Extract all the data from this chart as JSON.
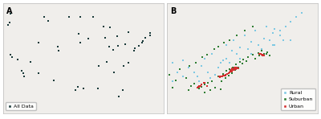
{
  "fig_width": 4.0,
  "fig_height": 1.48,
  "dpi": 100,
  "background_color": "#ffffff",
  "panel_bg": "#f0eeeb",
  "map_face_color": "#f0eeeb",
  "map_edge_color": "#888888",
  "map_edge_width": 0.3,
  "all_data_color": "#1a3a3a",
  "rural_color": "#7ec8e3",
  "suburban_color": "#2e7d32",
  "urban_color": "#d32f2f",
  "marker_size_a": 3,
  "marker_size_b": 4,
  "label_a": "A",
  "label_b": "B",
  "legend_a_label": "All Data",
  "legend_rural": "Rural",
  "legend_suburban": "Suburban",
  "legend_urban": "Urban",
  "us_xlim": [
    -125,
    -66
  ],
  "us_ylim": [
    24,
    50
  ],
  "ne_xlim": [
    -80,
    -66
  ],
  "ne_ylim": [
    36,
    48
  ],
  "all_points": [
    [
      -122.4,
      47.6
    ],
    [
      -122.3,
      37.8
    ],
    [
      -118.2,
      34.1
    ],
    [
      -117.2,
      32.7
    ],
    [
      -119.8,
      36.7
    ],
    [
      -121.9,
      37.3
    ],
    [
      -117.7,
      33.4
    ],
    [
      -112.1,
      33.4
    ],
    [
      -104.9,
      39.7
    ],
    [
      -104.7,
      38.8
    ],
    [
      -96.7,
      40.8
    ],
    [
      -97.3,
      42.8
    ],
    [
      -93.6,
      41.6
    ],
    [
      -87.6,
      41.9
    ],
    [
      -86.2,
      39.8
    ],
    [
      -83.0,
      42.3
    ],
    [
      -84.5,
      39.1
    ],
    [
      -82.9,
      40.0
    ],
    [
      -80.2,
      40.4
    ],
    [
      -79.0,
      43.2
    ],
    [
      -75.2,
      39.9
    ],
    [
      -74.0,
      40.7
    ],
    [
      -73.8,
      41.1
    ],
    [
      -72.7,
      41.8
    ],
    [
      -71.1,
      42.4
    ],
    [
      -70.9,
      43.0
    ],
    [
      -77.0,
      38.9
    ],
    [
      -76.6,
      39.3
    ],
    [
      -78.9,
      36.0
    ],
    [
      -80.8,
      35.2
    ],
    [
      -84.4,
      33.7
    ],
    [
      -86.8,
      36.2
    ],
    [
      -90.1,
      29.9
    ],
    [
      -90.0,
      35.1
    ],
    [
      -95.4,
      29.8
    ],
    [
      -97.7,
      30.3
    ],
    [
      -106.5,
      31.8
    ],
    [
      -98.5,
      29.4
    ],
    [
      -111.9,
      40.8
    ],
    [
      -115.1,
      36.2
    ],
    [
      -123.3,
      44.9
    ],
    [
      -122.7,
      45.5
    ],
    [
      -110.0,
      46.9
    ],
    [
      -108.5,
      45.8
    ],
    [
      -100.8,
      46.9
    ],
    [
      -96.8,
      46.9
    ],
    [
      -92.1,
      46.8
    ],
    [
      -88.0,
      44.5
    ],
    [
      -85.7,
      44.3
    ],
    [
      -81.0,
      29.5
    ],
    [
      -82.5,
      27.9
    ]
  ],
  "rural_points": [
    [
      -77.5,
      40.5
    ],
    [
      -76.8,
      41.2
    ],
    [
      -75.0,
      41.5
    ],
    [
      -74.5,
      42.0
    ],
    [
      -73.5,
      42.5
    ],
    [
      -72.5,
      43.0
    ],
    [
      -71.5,
      43.5
    ],
    [
      -70.5,
      44.0
    ],
    [
      -70.0,
      43.5
    ],
    [
      -69.5,
      44.5
    ],
    [
      -68.5,
      44.0
    ],
    [
      -77.0,
      39.5
    ],
    [
      -76.0,
      39.8
    ],
    [
      -75.5,
      40.2
    ],
    [
      -74.8,
      41.8
    ],
    [
      -74.0,
      42.8
    ],
    [
      -73.2,
      43.2
    ],
    [
      -72.2,
      43.8
    ],
    [
      -71.0,
      44.2
    ],
    [
      -70.2,
      44.8
    ],
    [
      -78.5,
      40.0
    ],
    [
      -79.0,
      40.5
    ],
    [
      -79.5,
      39.5
    ],
    [
      -78.0,
      41.0
    ],
    [
      -76.5,
      42.0
    ],
    [
      -75.8,
      42.5
    ],
    [
      -74.5,
      43.5
    ],
    [
      -73.8,
      44.0
    ],
    [
      -72.8,
      44.5
    ],
    [
      -71.8,
      45.0
    ],
    [
      -70.8,
      45.5
    ],
    [
      -67.5,
      47.0
    ],
    [
      -68.0,
      46.5
    ],
    [
      -68.5,
      46.0
    ],
    [
      -69.0,
      45.5
    ],
    [
      -69.5,
      45.0
    ],
    [
      -70.0,
      45.2
    ],
    [
      -79.5,
      41.5
    ],
    [
      -78.5,
      41.8
    ],
    [
      -77.2,
      40.0
    ],
    [
      -76.2,
      40.5
    ],
    [
      -75.2,
      41.0
    ],
    [
      -74.2,
      41.5
    ],
    [
      -73.2,
      42.0
    ],
    [
      -72.2,
      42.5
    ],
    [
      -71.2,
      43.0
    ],
    [
      -70.2,
      43.5
    ],
    [
      -69.2,
      44.0
    ]
  ],
  "suburban_points": [
    [
      -77.2,
      38.8
    ],
    [
      -77.0,
      38.7
    ],
    [
      -76.8,
      38.9
    ],
    [
      -76.5,
      39.1
    ],
    [
      -76.2,
      39.3
    ],
    [
      -75.8,
      39.5
    ],
    [
      -75.2,
      40.0
    ],
    [
      -74.8,
      40.3
    ],
    [
      -74.5,
      40.6
    ],
    [
      -74.2,
      40.8
    ],
    [
      -73.9,
      41.0
    ],
    [
      -73.6,
      41.3
    ],
    [
      -73.2,
      41.6
    ],
    [
      -72.9,
      41.9
    ],
    [
      -72.5,
      42.1
    ],
    [
      -72.0,
      42.4
    ],
    [
      -71.5,
      42.6
    ],
    [
      -71.2,
      42.8
    ],
    [
      -70.8,
      42.5
    ],
    [
      -70.5,
      42.3
    ],
    [
      -77.5,
      39.2
    ],
    [
      -77.8,
      39.0
    ],
    [
      -76.0,
      38.5
    ],
    [
      -75.5,
      38.8
    ],
    [
      -74.9,
      39.5
    ],
    [
      -74.6,
      39.8
    ],
    [
      -74.3,
      40.1
    ],
    [
      -74.0,
      40.4
    ],
    [
      -73.7,
      40.7
    ],
    [
      -73.4,
      41.0
    ],
    [
      -73.0,
      41.4
    ],
    [
      -72.6,
      41.7
    ],
    [
      -71.8,
      42.0
    ],
    [
      -71.4,
      42.3
    ],
    [
      -71.0,
      42.5
    ],
    [
      -70.7,
      42.7
    ],
    [
      -78.2,
      39.8
    ],
    [
      -79.2,
      39.6
    ],
    [
      -79.8,
      40.2
    ],
    [
      -78.8,
      40.8
    ],
    [
      -77.9,
      41.2
    ],
    [
      -77.3,
      41.5
    ],
    [
      -76.7,
      42.1
    ],
    [
      -76.3,
      42.4
    ],
    [
      -75.6,
      43.0
    ],
    [
      -75.2,
      43.3
    ],
    [
      -74.7,
      43.7
    ],
    [
      -74.2,
      44.0
    ],
    [
      -73.5,
      44.5
    ],
    [
      -72.8,
      45.0
    ],
    [
      -72.0,
      45.5
    ],
    [
      -78.0,
      38.5
    ],
    [
      -79.5,
      38.8
    ],
    [
      -76.5,
      38.3
    ],
    [
      -75.0,
      38.6
    ]
  ],
  "urban_points": [
    [
      -77.0,
      38.9
    ],
    [
      -76.6,
      39.3
    ],
    [
      -75.1,
      39.95
    ],
    [
      -74.05,
      40.72
    ],
    [
      -73.95,
      40.65
    ],
    [
      -73.85,
      40.75
    ],
    [
      -74.1,
      40.6
    ],
    [
      -74.15,
      40.65
    ],
    [
      -73.9,
      40.8
    ],
    [
      -73.8,
      40.85
    ],
    [
      -73.75,
      41.0
    ],
    [
      -73.7,
      40.95
    ],
    [
      -74.0,
      40.9
    ],
    [
      -73.6,
      40.9
    ],
    [
      -73.5,
      40.95
    ],
    [
      -71.05,
      42.36
    ],
    [
      -71.1,
      42.38
    ],
    [
      -71.15,
      42.35
    ],
    [
      -71.2,
      42.4
    ],
    [
      -71.0,
      42.32
    ],
    [
      -76.5,
      39.3
    ],
    [
      -77.1,
      38.85
    ],
    [
      -77.05,
      38.92
    ],
    [
      -76.9,
      38.95
    ],
    [
      -75.15,
      40.0
    ],
    [
      -75.0,
      40.05
    ],
    [
      -74.9,
      39.98
    ],
    [
      -74.85,
      40.02
    ],
    [
      -74.8,
      40.08
    ],
    [
      -74.7,
      40.1
    ],
    [
      -74.6,
      40.15
    ],
    [
      -74.55,
      40.2
    ],
    [
      -74.45,
      40.25
    ],
    [
      -74.3,
      40.35
    ],
    [
      -74.2,
      40.45
    ],
    [
      -74.1,
      40.52
    ],
    [
      -74.0,
      40.58
    ],
    [
      -73.98,
      40.62
    ],
    [
      -73.88,
      40.68
    ],
    [
      -73.78,
      40.72
    ],
    [
      -73.68,
      40.78
    ],
    [
      -73.58,
      40.82
    ],
    [
      -73.48,
      40.88
    ],
    [
      -73.38,
      40.92
    ],
    [
      -71.3,
      42.5
    ],
    [
      -71.4,
      42.45
    ],
    [
      -71.0,
      42.3
    ],
    [
      -76.8,
      39.1
    ],
    [
      -77.2,
      38.8
    ],
    [
      -76.3,
      39.0
    ]
  ]
}
